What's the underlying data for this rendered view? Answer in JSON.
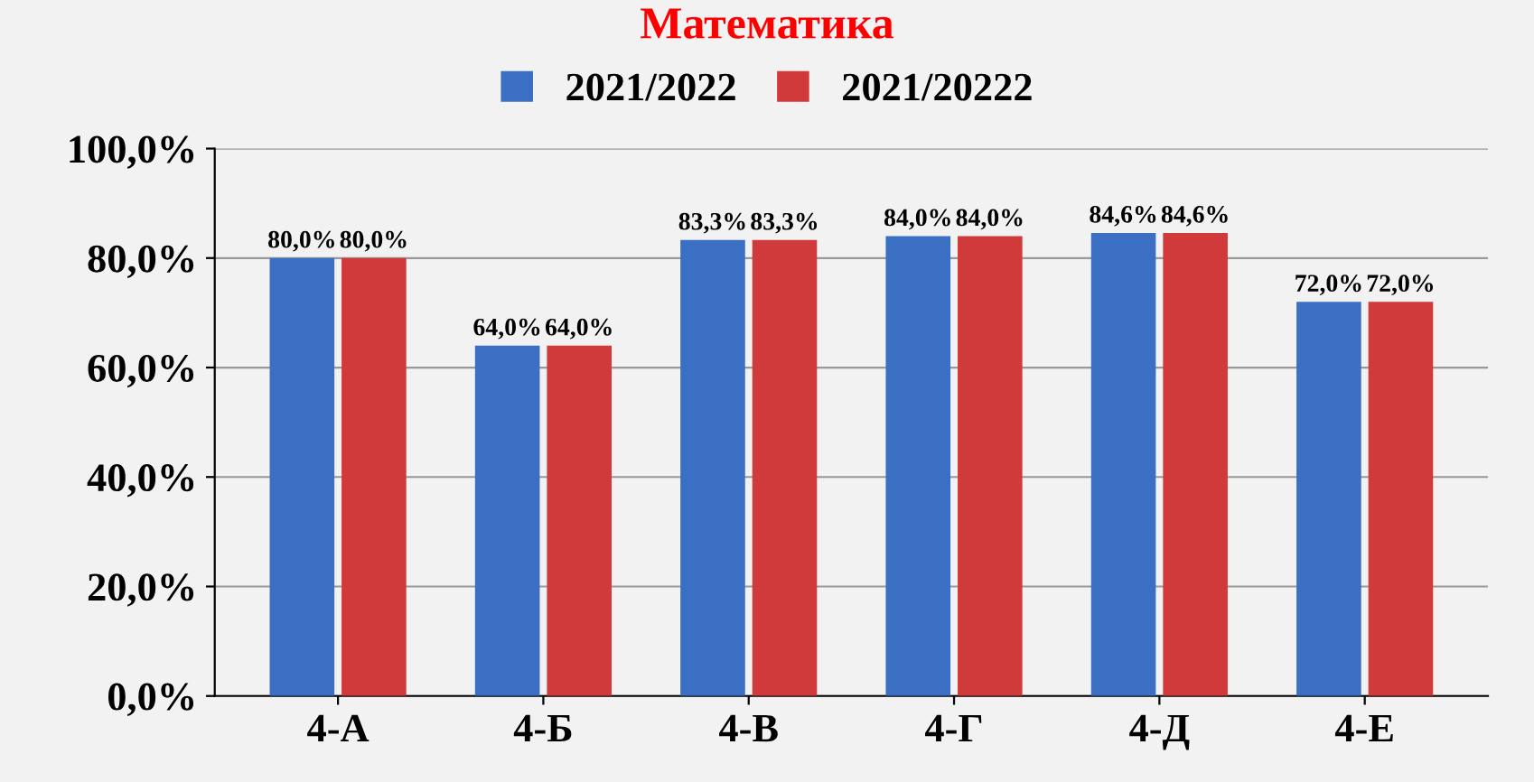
{
  "chart_data": {
    "type": "bar",
    "title": "Математика",
    "categories": [
      "4-А",
      "4-Б",
      "4-В",
      "4-Г",
      "4-Д",
      "4-Е"
    ],
    "series": [
      {
        "name": "2021/2022",
        "color": "#3a6fc4",
        "values": [
          80.0,
          64.0,
          83.3,
          84.0,
          84.6,
          72.0
        ],
        "value_labels": [
          "80,0%",
          "64,0%",
          "83,3%",
          "84,0%",
          "84,6%",
          "72,0%"
        ]
      },
      {
        "name": "2021/20222",
        "color": "#d03a3a",
        "values": [
          80.0,
          64.0,
          83.3,
          84.0,
          84.6,
          72.0
        ],
        "value_labels": [
          "80,0%",
          "64,0%",
          "83,3%",
          "84,0%",
          "84,6%",
          "72,0%"
        ]
      }
    ],
    "ylim": [
      0,
      100
    ],
    "yticks": [
      {
        "value": 0,
        "label": "0,0%"
      },
      {
        "value": 20,
        "label": "20,0%"
      },
      {
        "value": 40,
        "label": "40,0%"
      },
      {
        "value": 60,
        "label": "60,0%"
      },
      {
        "value": 80,
        "label": "80,0%"
      },
      {
        "value": 100,
        "label": "100,0%"
      }
    ],
    "grid": "y",
    "legend": "top"
  }
}
